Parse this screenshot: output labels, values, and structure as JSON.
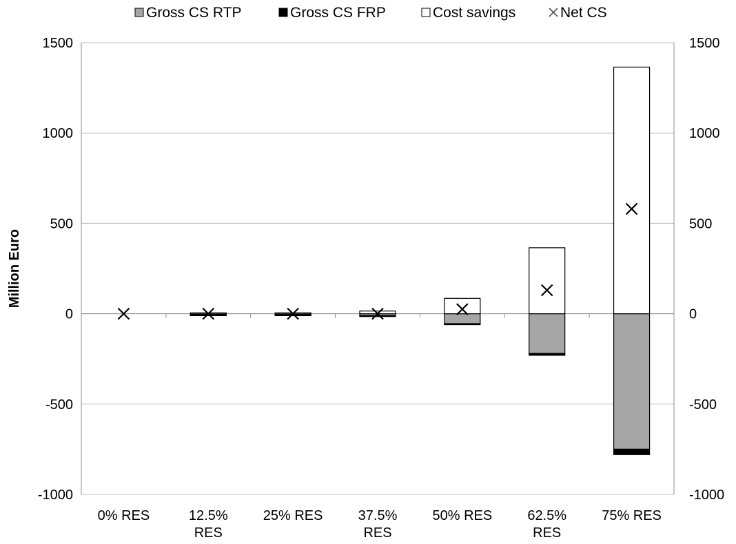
{
  "chart_data": {
    "type": "bar",
    "stacked": true,
    "categories": [
      [
        "0% RES"
      ],
      [
        "12.5%",
        "RES"
      ],
      [
        "25% RES"
      ],
      [
        "37.5%",
        "RES"
      ],
      [
        "50% RES"
      ],
      [
        "62.5%",
        "RES"
      ],
      [
        "75% RES"
      ]
    ],
    "series": [
      {
        "name": "Gross CS RTP",
        "kind": "bar",
        "color": "#a6a6a6",
        "values": [
          0,
          -5,
          -5,
          -10,
          -55,
          -220,
          -750
        ]
      },
      {
        "name": "Gross CS FRP",
        "kind": "bar",
        "color": "#000000",
        "values": [
          0,
          -2,
          -2,
          -3,
          -5,
          -10,
          -30
        ]
      },
      {
        "name": "Cost savings",
        "kind": "bar",
        "color": "#ffffff",
        "values": [
          0,
          5,
          5,
          15,
          85,
          365,
          1365
        ]
      },
      {
        "name": "Net CS",
        "kind": "marker",
        "marker": "x",
        "values": [
          0,
          0,
          0,
          0,
          25,
          130,
          580
        ]
      }
    ],
    "ylabel": "Million Euro",
    "ylim": [
      -1000,
      1500
    ],
    "yticks": [
      -1000,
      -500,
      0,
      500,
      1000,
      1500
    ],
    "y2ticks": [
      -1000,
      -500,
      0,
      500,
      1000,
      1500
    ],
    "grid": true,
    "legend_position": "top"
  }
}
